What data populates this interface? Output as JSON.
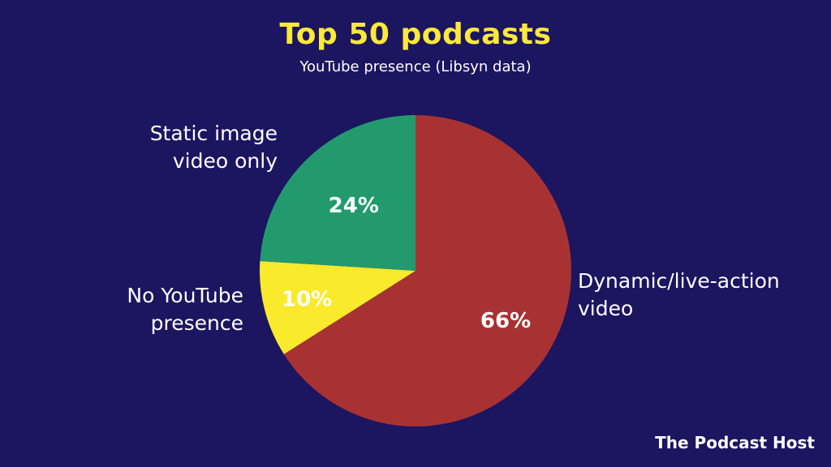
{
  "chart_data": {
    "type": "pie",
    "title": "Top 50 podcasts",
    "subtitle": "YouTube presence (Libsyn data)",
    "categories": [
      "Dynamic/live-action video",
      "No YouTube presence",
      "Static image video only"
    ],
    "values": [
      66,
      10,
      24
    ],
    "value_labels": [
      "66%",
      "10%",
      "24%"
    ],
    "slice_labels": [
      [
        "Dynamic/live-action",
        "video"
      ],
      [
        "No YouTube",
        "presence"
      ],
      [
        "Static image",
        "video only"
      ]
    ],
    "colors": [
      "#a83232",
      "#f9ea2b",
      "#229a6e"
    ]
  },
  "colors": {
    "background": "#1c1560",
    "title": "#fde93a",
    "text": "#ffffff"
  },
  "brand": {
    "text": "The Podcast Host"
  }
}
